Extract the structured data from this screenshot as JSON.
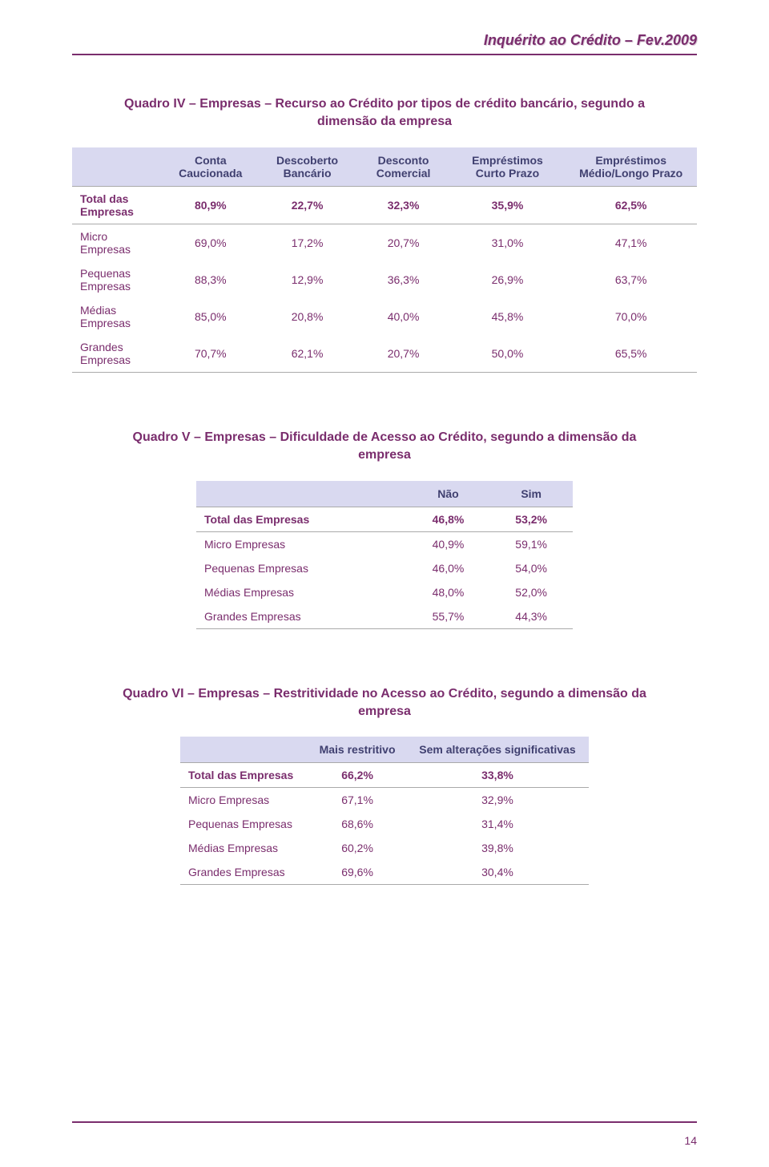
{
  "header": {
    "title": "Inquérito ao Crédito – Fev.2009"
  },
  "colors": {
    "brand": "#7a2d6d",
    "table_header_bg": "#d9d9f0",
    "table_header_text": "#404070",
    "body_text": "#7a2d6d",
    "rule": "#7a2d6d",
    "row_border": "#aaaaaa"
  },
  "quadro4": {
    "title": "Quadro IV – Empresas – Recurso ao Crédito por tipos de crédito bancário, segundo a dimensão da empresa",
    "columns": [
      "Conta Caucionada",
      "Descoberto Bancário",
      "Desconto Comercial",
      "Empréstimos Curto Prazo",
      "Empréstimos Médio/Longo Prazo"
    ],
    "rows": [
      {
        "label": "Total das Empresas",
        "vals": [
          "80,9%",
          "22,7%",
          "32,3%",
          "35,9%",
          "62,5%"
        ],
        "total": true
      },
      {
        "label": "Micro Empresas",
        "vals": [
          "69,0%",
          "17,2%",
          "20,7%",
          "31,0%",
          "47,1%"
        ]
      },
      {
        "label": "Pequenas Empresas",
        "vals": [
          "88,3%",
          "12,9%",
          "36,3%",
          "26,9%",
          "63,7%"
        ]
      },
      {
        "label": "Médias Empresas",
        "vals": [
          "85,0%",
          "20,8%",
          "40,0%",
          "45,8%",
          "70,0%"
        ]
      },
      {
        "label": "Grandes Empresas",
        "vals": [
          "70,7%",
          "62,1%",
          "20,7%",
          "50,0%",
          "65,5%"
        ],
        "last": true
      }
    ]
  },
  "quadro5": {
    "title": "Quadro V – Empresas – Dificuldade de Acesso ao Crédito, segundo a dimensão da empresa",
    "columns": [
      "Não",
      "Sim"
    ],
    "rows": [
      {
        "label": "Total das Empresas",
        "vals": [
          "46,8%",
          "53,2%"
        ],
        "total": true
      },
      {
        "label": "Micro Empresas",
        "vals": [
          "40,9%",
          "59,1%"
        ]
      },
      {
        "label": "Pequenas Empresas",
        "vals": [
          "46,0%",
          "54,0%"
        ]
      },
      {
        "label": "Médias Empresas",
        "vals": [
          "48,0%",
          "52,0%"
        ]
      },
      {
        "label": "Grandes Empresas",
        "vals": [
          "55,7%",
          "44,3%"
        ],
        "last": true
      }
    ]
  },
  "quadro6": {
    "title": "Quadro VI – Empresas – Restritividade no Acesso ao Crédito, segundo a dimensão da empresa",
    "columns": [
      "Mais restritivo",
      "Sem alterações significativas"
    ],
    "rows": [
      {
        "label": "Total das Empresas",
        "vals": [
          "66,2%",
          "33,8%"
        ],
        "total": true
      },
      {
        "label": "Micro Empresas",
        "vals": [
          "67,1%",
          "32,9%"
        ]
      },
      {
        "label": "Pequenas Empresas",
        "vals": [
          "68,6%",
          "31,4%"
        ]
      },
      {
        "label": "Médias Empresas",
        "vals": [
          "60,2%",
          "39,8%"
        ]
      },
      {
        "label": "Grandes Empresas",
        "vals": [
          "69,6%",
          "30,4%"
        ],
        "last": true
      }
    ]
  },
  "page_number": "14"
}
